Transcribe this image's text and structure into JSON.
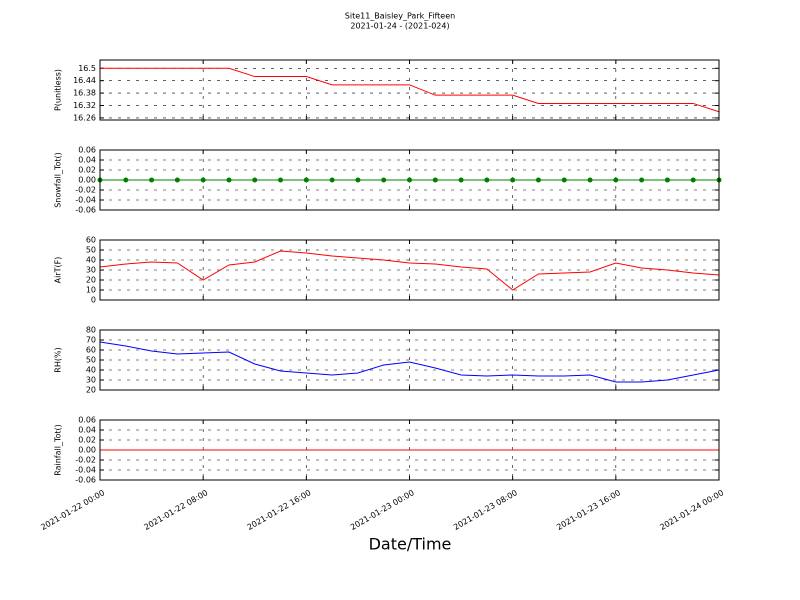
{
  "title": "Site11_Baisley_Park_Fifteen",
  "subtitle": "2021-01-24 - (2021-024)",
  "x_label": "Date/Time",
  "chart_data": [
    {
      "type": "line",
      "y_label": "P(unitless)",
      "x": [
        "2021-01-22 00:00",
        "2021-01-22 02:00",
        "2021-01-22 04:00",
        "2021-01-22 06:00",
        "2021-01-22 08:00",
        "2021-01-22 10:00",
        "2021-01-22 12:00",
        "2021-01-22 14:00",
        "2021-01-22 16:00",
        "2021-01-22 18:00",
        "2021-01-22 20:00",
        "2021-01-22 22:00",
        "2021-01-23 00:00",
        "2021-01-23 02:00",
        "2021-01-23 04:00",
        "2021-01-23 06:00",
        "2021-01-23 08:00",
        "2021-01-23 10:00",
        "2021-01-23 12:00",
        "2021-01-23 14:00",
        "2021-01-23 16:00",
        "2021-01-23 18:00",
        "2021-01-23 20:00",
        "2021-01-23 22:00",
        "2021-01-24 00:00"
      ],
      "series": [
        {
          "color": "#ff0000",
          "values": [
            16.5,
            16.5,
            16.5,
            16.5,
            16.5,
            16.5,
            16.46,
            16.46,
            16.46,
            16.42,
            16.42,
            16.42,
            16.42,
            16.37,
            16.37,
            16.37,
            16.37,
            16.33,
            16.33,
            16.33,
            16.33,
            16.33,
            16.33,
            16.33,
            16.29
          ]
        }
      ],
      "xlim": [
        "2021-01-22 00:00",
        "2021-01-24 00:00"
      ],
      "xticks": [
        "2021-01-22 00:00",
        "2021-01-22 08:00",
        "2021-01-22 16:00",
        "2021-01-23 00:00",
        "2021-01-23 08:00",
        "2021-01-23 16:00",
        "2021-01-24 00:00"
      ],
      "ylim": [
        16.25,
        16.54
      ],
      "yticks": [
        16.26,
        16.32,
        16.38,
        16.44,
        16.5
      ],
      "grid": true
    },
    {
      "type": "line",
      "y_label": "Snowfall_Tot()",
      "markers": true,
      "x": [
        "2021-01-22 00:00",
        "2021-01-22 02:00",
        "2021-01-22 04:00",
        "2021-01-22 06:00",
        "2021-01-22 08:00",
        "2021-01-22 10:00",
        "2021-01-22 12:00",
        "2021-01-22 14:00",
        "2021-01-22 16:00",
        "2021-01-22 18:00",
        "2021-01-22 20:00",
        "2021-01-22 22:00",
        "2021-01-23 00:00",
        "2021-01-23 02:00",
        "2021-01-23 04:00",
        "2021-01-23 06:00",
        "2021-01-23 08:00",
        "2021-01-23 10:00",
        "2021-01-23 12:00",
        "2021-01-23 14:00",
        "2021-01-23 16:00",
        "2021-01-23 18:00",
        "2021-01-23 20:00",
        "2021-01-23 22:00",
        "2021-01-24 00:00"
      ],
      "series": [
        {
          "color": "#008000",
          "values": [
            0,
            0,
            0,
            0,
            0,
            0,
            0,
            0,
            0,
            0,
            0,
            0,
            0,
            0,
            0,
            0,
            0,
            0,
            0,
            0,
            0,
            0,
            0,
            0,
            0
          ]
        }
      ],
      "xlim": [
        "2021-01-22 00:00",
        "2021-01-24 00:00"
      ],
      "xticks": [
        "2021-01-22 00:00",
        "2021-01-22 08:00",
        "2021-01-22 16:00",
        "2021-01-23 00:00",
        "2021-01-23 08:00",
        "2021-01-23 16:00",
        "2021-01-24 00:00"
      ],
      "ylim": [
        -0.06,
        0.06
      ],
      "yticks": [
        -0.06,
        -0.04,
        -0.02,
        {
          "value": 0,
          "label": "0.00"
        },
        0.02,
        0.04,
        0.06
      ],
      "grid": true
    },
    {
      "type": "line",
      "y_label": "AirT(F)",
      "x": [
        "2021-01-22 00:00",
        "2021-01-22 02:00",
        "2021-01-22 04:00",
        "2021-01-22 06:00",
        "2021-01-22 08:00",
        "2021-01-22 10:00",
        "2021-01-22 12:00",
        "2021-01-22 14:00",
        "2021-01-22 16:00",
        "2021-01-22 18:00",
        "2021-01-22 20:00",
        "2021-01-22 22:00",
        "2021-01-23 00:00",
        "2021-01-23 02:00",
        "2021-01-23 04:00",
        "2021-01-23 06:00",
        "2021-01-23 08:00",
        "2021-01-23 10:00",
        "2021-01-23 12:00",
        "2021-01-23 14:00",
        "2021-01-23 16:00",
        "2021-01-23 18:00",
        "2021-01-23 20:00",
        "2021-01-23 22:00",
        "2021-01-24 00:00"
      ],
      "series": [
        {
          "color": "#ff0000",
          "values": [
            33,
            36,
            38,
            37,
            20,
            35,
            38,
            49,
            47,
            44,
            42,
            40,
            37,
            36,
            33,
            31,
            10,
            26,
            27,
            28,
            37,
            32,
            30,
            27,
            25
          ]
        }
      ],
      "xlim": [
        "2021-01-22 00:00",
        "2021-01-24 00:00"
      ],
      "xticks": [
        "2021-01-22 00:00",
        "2021-01-22 08:00",
        "2021-01-22 16:00",
        "2021-01-23 00:00",
        "2021-01-23 08:00",
        "2021-01-23 16:00",
        "2021-01-24 00:00"
      ],
      "ylim": [
        0,
        60
      ],
      "yticks": [
        0,
        10,
        20,
        30,
        40,
        50,
        60
      ],
      "grid": true
    },
    {
      "type": "line",
      "y_label": "RH(%)",
      "x": [
        "2021-01-22 00:00",
        "2021-01-22 02:00",
        "2021-01-22 04:00",
        "2021-01-22 06:00",
        "2021-01-22 08:00",
        "2021-01-22 10:00",
        "2021-01-22 12:00",
        "2021-01-22 14:00",
        "2021-01-22 16:00",
        "2021-01-22 18:00",
        "2021-01-22 20:00",
        "2021-01-22 22:00",
        "2021-01-23 00:00",
        "2021-01-23 02:00",
        "2021-01-23 04:00",
        "2021-01-23 06:00",
        "2021-01-23 08:00",
        "2021-01-23 10:00",
        "2021-01-23 12:00",
        "2021-01-23 14:00",
        "2021-01-23 16:00",
        "2021-01-23 18:00",
        "2021-01-23 20:00",
        "2021-01-23 22:00",
        "2021-01-24 00:00"
      ],
      "series": [
        {
          "color": "#0000ff",
          "values": [
            68,
            64,
            59,
            56,
            57,
            58,
            46,
            39,
            37,
            35,
            37,
            45,
            48,
            42,
            35,
            34,
            35,
            34,
            34,
            35,
            28,
            28,
            30,
            35,
            40
          ]
        }
      ],
      "xlim": [
        "2021-01-22 00:00",
        "2021-01-24 00:00"
      ],
      "xticks": [
        "2021-01-22 00:00",
        "2021-01-22 08:00",
        "2021-01-22 16:00",
        "2021-01-23 00:00",
        "2021-01-23 08:00",
        "2021-01-23 16:00",
        "2021-01-24 00:00"
      ],
      "ylim": [
        20,
        80
      ],
      "yticks": [
        20,
        30,
        40,
        50,
        60,
        70,
        80
      ],
      "grid": true
    },
    {
      "type": "line",
      "y_label": "Rainfall_Tot()",
      "x": [
        "2021-01-22 00:00",
        "2021-01-22 02:00",
        "2021-01-22 04:00",
        "2021-01-22 06:00",
        "2021-01-22 08:00",
        "2021-01-22 10:00",
        "2021-01-22 12:00",
        "2021-01-22 14:00",
        "2021-01-22 16:00",
        "2021-01-22 18:00",
        "2021-01-22 20:00",
        "2021-01-22 22:00",
        "2021-01-23 00:00",
        "2021-01-23 02:00",
        "2021-01-23 04:00",
        "2021-01-23 06:00",
        "2021-01-23 08:00",
        "2021-01-23 10:00",
        "2021-01-23 12:00",
        "2021-01-23 14:00",
        "2021-01-23 16:00",
        "2021-01-23 18:00",
        "2021-01-23 20:00",
        "2021-01-23 22:00",
        "2021-01-24 00:00"
      ],
      "series": [
        {
          "color": "#ff0000",
          "values": [
            0,
            0,
            0,
            0,
            0,
            0,
            0,
            0,
            0,
            0,
            0,
            0,
            0,
            0,
            0,
            0,
            0,
            0,
            0,
            0,
            0,
            0,
            0,
            0,
            0
          ]
        }
      ],
      "xlim": [
        "2021-01-22 00:00",
        "2021-01-24 00:00"
      ],
      "xticks": [
        "2021-01-22 00:00",
        "2021-01-22 08:00",
        "2021-01-22 16:00",
        "2021-01-23 00:00",
        "2021-01-23 08:00",
        "2021-01-23 16:00",
        "2021-01-24 00:00"
      ],
      "ylim": [
        -0.06,
        0.06
      ],
      "yticks": [
        -0.06,
        -0.04,
        -0.02,
        {
          "value": 0,
          "label": "0.00"
        },
        0.02,
        0.04,
        0.06
      ],
      "grid": true
    }
  ]
}
